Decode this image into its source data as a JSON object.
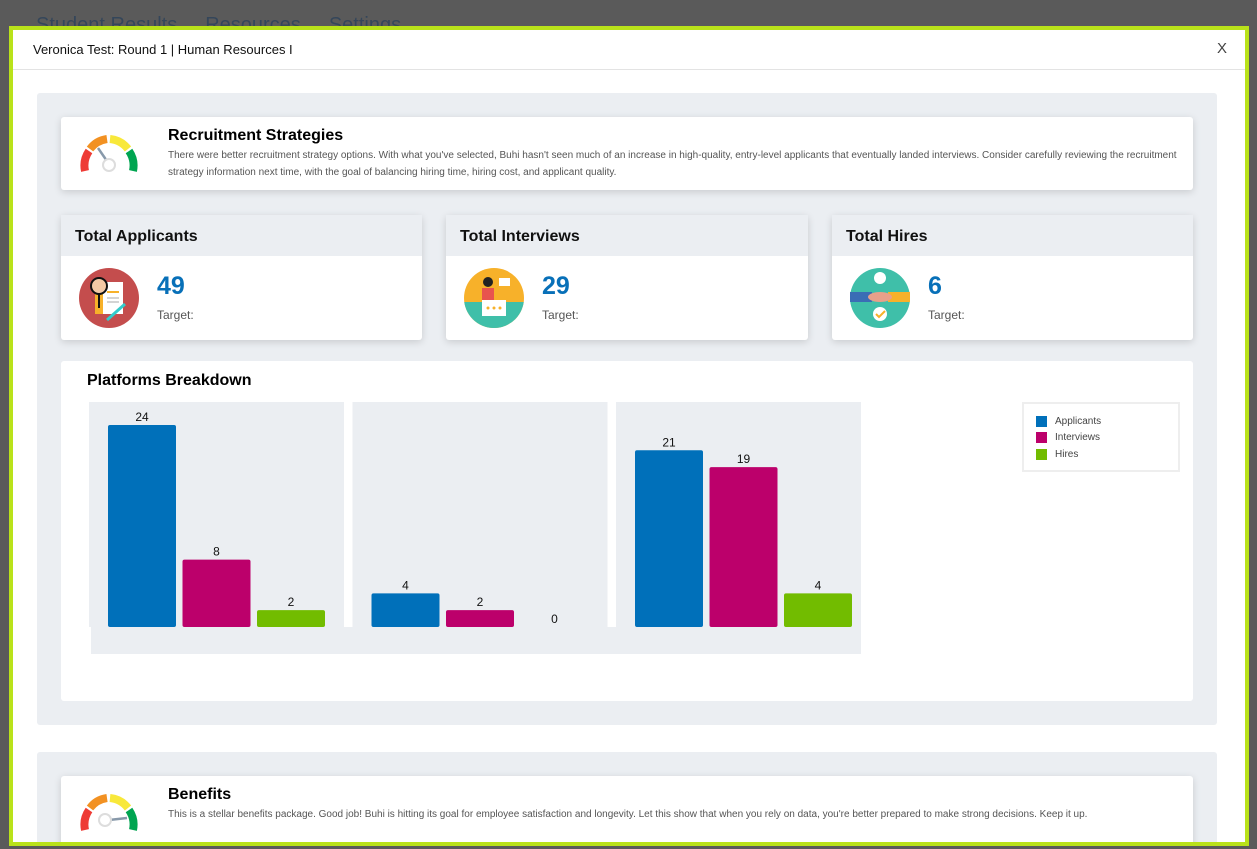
{
  "background_nav": [
    "Student Results",
    "Resources",
    "Settings"
  ],
  "modal": {
    "title": "Veronica Test: Round 1 | Human Resources I",
    "close_label": "X"
  },
  "recruitment": {
    "title": "Recruitment Strategies",
    "icon": "gauge-icon",
    "gauge_level": "low",
    "text": "There were better recruitment strategy options. With what you've selected, Buhi hasn't seen much of an increase in high-quality, entry-level applicants that eventually landed interviews. Consider carefully reviewing the recruitment strategy information next time, with the goal of balancing hiring time, hiring cost, and applicant quality."
  },
  "stats": [
    {
      "title": "Total Applicants",
      "value": "49",
      "target": "Target:",
      "icon": "applicant-search-icon"
    },
    {
      "title": "Total Interviews",
      "value": "29",
      "target": "Target:",
      "icon": "interview-icon"
    },
    {
      "title": "Total Hires",
      "value": "6",
      "target": "Target:",
      "icon": "handshake-icon"
    }
  ],
  "colors": {
    "applicants": "#0070ba",
    "interviews": "#bc006b",
    "hires": "#72bc00",
    "accent": "#b9e21a",
    "number": "#0870b8"
  },
  "chart_data": {
    "type": "bar",
    "title": "Platforms Breakdown",
    "categories": [
      "",
      "",
      ""
    ],
    "series": [
      {
        "name": "Applicants",
        "values": [
          24,
          4,
          21
        ]
      },
      {
        "name": "Interviews",
        "values": [
          8,
          2,
          19
        ]
      },
      {
        "name": "Hires",
        "values": [
          2,
          0,
          4
        ]
      }
    ],
    "ylim": [
      0,
      24
    ],
    "grid": false,
    "legend": "top-right",
    "data_labels": true
  },
  "benefits": {
    "title": "Benefits",
    "icon": "gauge-icon",
    "gauge_level": "high",
    "text": "This is a stellar benefits package. Good job! Buhi is hitting its goal for employee satisfaction and longevity. Let this show that when you rely on data, you're better prepared to make strong decisions. Keep it up."
  }
}
